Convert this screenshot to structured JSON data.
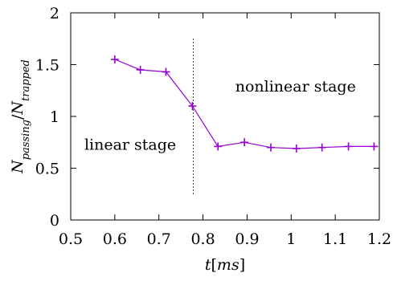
{
  "chart_data": {
    "type": "line",
    "title": "",
    "xlabel": "t[ms]",
    "ylabel": "N_passing/N_trapped",
    "xlim": [
      0.5,
      1.2
    ],
    "ylim": [
      0,
      2
    ],
    "xticks": [
      "0.5",
      "0.6",
      "0.7",
      "0.8",
      "0.9",
      "1",
      "1.1",
      "1.2"
    ],
    "yticks": [
      "0",
      "0.5",
      "1",
      "1.5",
      "2"
    ],
    "grid": false,
    "legend": "none",
    "series": [
      {
        "color": "#9400d3",
        "marker": "plus",
        "x": [
          0.6,
          0.658,
          0.716,
          0.776,
          0.834,
          0.894,
          0.954,
          1.012,
          1.07,
          1.13,
          1.188
        ],
        "y": [
          1.55,
          1.45,
          1.43,
          1.1,
          0.71,
          0.75,
          0.7,
          0.69,
          0.7,
          0.71,
          0.71
        ]
      }
    ],
    "vline": {
      "x": 0.778,
      "y_from": 0.24,
      "y_to": 1.75,
      "style": "dotted"
    },
    "annotations": [
      {
        "text": "nonlinear stage",
        "x": 1.01,
        "y": 1.24
      },
      {
        "text": "linear stage",
        "x": 0.635,
        "y": 0.68
      }
    ]
  }
}
